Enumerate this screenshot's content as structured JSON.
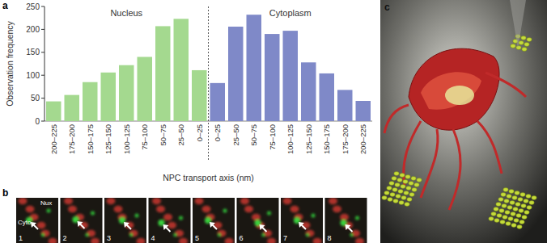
{
  "panel_labels": [
    "a",
    "b",
    "c"
  ],
  "chart_data": {
    "type": "bar",
    "y_label": "Observation frequency",
    "x_label": "NPC transport axis (nm)",
    "categories": [
      "200–225",
      "175–200",
      "150–175",
      "125–150",
      "100–125",
      "75–100",
      "50–75",
      "25–50",
      "0–25",
      "0–25",
      "25–50",
      "50–75",
      "75–100",
      "100–125",
      "125–150",
      "150–175",
      "175–200",
      "200–225"
    ],
    "series": [
      {
        "name": "Nucleus",
        "color": "#a4d98f",
        "values": [
          43,
          57,
          85,
          106,
          122,
          140,
          207,
          223,
          111,
          null,
          null,
          null,
          null,
          null,
          null,
          null,
          null,
          null
        ]
      },
      {
        "name": "Cytoplasm",
        "color": "#7f89c8",
        "values": [
          null,
          null,
          null,
          null,
          null,
          null,
          null,
          null,
          null,
          83,
          206,
          232,
          190,
          197,
          128,
          104,
          68,
          44
        ]
      }
    ],
    "ylim": [
      0,
      250
    ],
    "yticks": [
      0,
      50,
      100,
      150,
      200,
      250
    ],
    "grid": false
  },
  "image_strip": {
    "region_labels": [
      "Nux",
      "Cyto"
    ],
    "frames": [
      "1",
      "2",
      "3",
      "4",
      "5",
      "6",
      "7",
      "8"
    ]
  }
}
